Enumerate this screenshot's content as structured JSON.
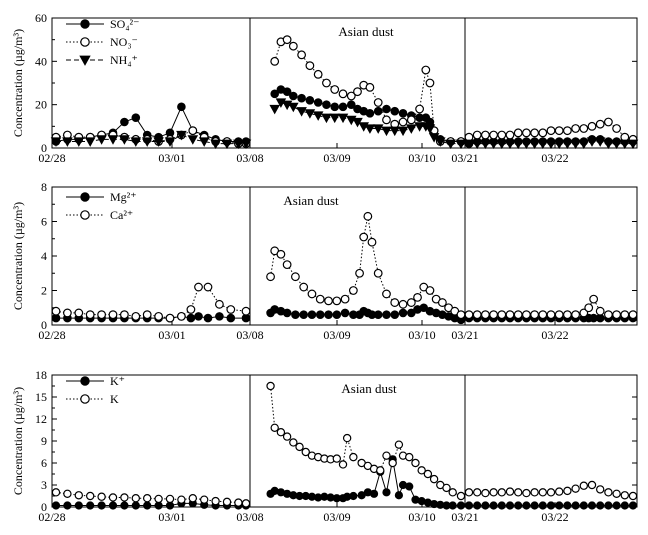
{
  "figure": {
    "ylabel": "Concentration (µg/m³)",
    "colors": {
      "axis": "#000000",
      "filled": "#000000",
      "open_fill": "#ffffff",
      "open_stroke": "#000000"
    }
  },
  "chart_data": [
    {
      "type": "line",
      "panel": "top",
      "ylabel": "Concentration (µg/m³)",
      "ylim": [
        0,
        60
      ],
      "yticks": [
        0,
        20,
        40,
        60
      ],
      "xtick_labels": [
        "02/28",
        "03/01",
        "03/08",
        "03/09",
        "03/10",
        "03/21",
        "03/22"
      ],
      "annotation": "Asian dust",
      "legend_position": "top-left",
      "segments": [
        {
          "x": [
            0,
            0.06,
            0.12,
            0.18,
            0.24,
            0.3,
            0.36,
            0.42,
            0.48,
            0.54,
            0.6,
            0.66,
            0.72,
            0.78,
            0.84,
            0.9,
            0.96,
            1.0
          ],
          "series": [
            {
              "legend": "SO₄²⁻",
              "marker": "filled-circle",
              "dash": "solid",
              "values": [
                3,
                4,
                4,
                5,
                6,
                7,
                12,
                14,
                6,
                5,
                7,
                19,
                8,
                6,
                4,
                3,
                3,
                3
              ]
            },
            {
              "legend": "NO₃⁻",
              "marker": "open-circle",
              "dash": "dotted",
              "values": [
                5,
                6,
                5,
                5,
                6,
                6,
                5,
                4,
                4,
                3,
                4,
                6,
                8,
                5,
                3,
                3,
                2,
                2
              ]
            },
            {
              "legend": "NH₄⁺",
              "marker": "filled-triangle-down",
              "dash": "dashed",
              "values": [
                3,
                3,
                3,
                3,
                4,
                4,
                4,
                3,
                3,
                3,
                3,
                6,
                4,
                3,
                2,
                2,
                2,
                2
              ]
            }
          ]
        },
        {
          "x": [
            0.1,
            0.13,
            0.16,
            0.19,
            0.23,
            0.27,
            0.31,
            0.35,
            0.39,
            0.43,
            0.47,
            0.5,
            0.53,
            0.56,
            0.6,
            0.64,
            0.68,
            0.72,
            0.76,
            0.8,
            0.83,
            0.85,
            0.87,
            0.9,
            0.95,
            1.0
          ],
          "series": [
            {
              "values": [
                25,
                27,
                26,
                24,
                23,
                22,
                21,
                20,
                19,
                19,
                20,
                18,
                17,
                16,
                17,
                18,
                17,
                16,
                15,
                14,
                14,
                12,
                8,
                4,
                3,
                3
              ]
            },
            {
              "values": [
                40,
                49,
                50,
                47,
                43,
                38,
                34,
                30,
                27,
                25,
                24,
                26,
                29,
                28,
                21,
                13,
                11,
                12,
                13,
                18,
                36,
                30,
                8,
                3,
                3,
                3
              ]
            },
            {
              "values": [
                18,
                21,
                20,
                19,
                17,
                16,
                15,
                14,
                14,
                14,
                13,
                12,
                10,
                9,
                9,
                8,
                8,
                8,
                9,
                10,
                10,
                9,
                5,
                3,
                2,
                2
              ]
            }
          ]
        },
        {
          "x": [
            0,
            0.05,
            0.1,
            0.15,
            0.2,
            0.25,
            0.3,
            0.35,
            0.4,
            0.45,
            0.5,
            0.55,
            0.6,
            0.65,
            0.7,
            0.75,
            0.8,
            0.85,
            0.9,
            0.95,
            1.0
          ],
          "series": [
            {
              "values": [
                2,
                3,
                3,
                3,
                3,
                3,
                3,
                3,
                3,
                3,
                3,
                3,
                3,
                3,
                3,
                4,
                4,
                3,
                3,
                3,
                3
              ]
            },
            {
              "values": [
                5,
                6,
                6,
                6,
                6,
                6,
                7,
                7,
                7,
                7,
                8,
                8,
                8,
                9,
                9,
                10,
                11,
                12,
                9,
                5,
                4
              ]
            },
            {
              "values": [
                2,
                2,
                2,
                2,
                2,
                2,
                2,
                2,
                2,
                2,
                2,
                2,
                2,
                2,
                2,
                3,
                3,
                2,
                2,
                2,
                2
              ]
            }
          ]
        }
      ]
    },
    {
      "type": "line",
      "panel": "middle",
      "ylabel": "Concentration (µg/m³)",
      "ylim": [
        0,
        8
      ],
      "yticks": [
        0,
        2,
        4,
        6,
        8
      ],
      "xtick_labels": [
        "02/28",
        "03/01",
        "03/08",
        "03/09",
        "03/10",
        "03/21",
        "03/22"
      ],
      "annotation": "Asian dust",
      "legend_position": "top-left",
      "segments": [
        {
          "x": [
            0,
            0.06,
            0.12,
            0.18,
            0.24,
            0.3,
            0.36,
            0.42,
            0.48,
            0.54,
            0.6,
            0.66,
            0.71,
            0.75,
            0.8,
            0.86,
            0.92,
            1.0
          ],
          "series": [
            {
              "legend": "Mg²⁺",
              "marker": "filled-circle",
              "dash": "solid",
              "values": [
                0.4,
                0.4,
                0.4,
                0.4,
                0.4,
                0.4,
                0.4,
                0.4,
                0.4,
                0.4,
                0.4,
                0.5,
                0.4,
                0.5,
                0.4,
                0.5,
                0.4,
                0.4
              ]
            },
            {
              "legend": "Ca²⁺",
              "marker": "open-circle",
              "dash": "dotted",
              "values": [
                0.8,
                0.7,
                0.7,
                0.6,
                0.6,
                0.6,
                0.6,
                0.5,
                0.6,
                0.5,
                0.4,
                0.5,
                0.9,
                2.2,
                2.2,
                1.2,
                0.9,
                0.8
              ]
            }
          ]
        },
        {
          "x": [
            0.08,
            0.1,
            0.13,
            0.16,
            0.2,
            0.24,
            0.28,
            0.32,
            0.36,
            0.4,
            0.44,
            0.48,
            0.51,
            0.53,
            0.55,
            0.57,
            0.6,
            0.64,
            0.68,
            0.72,
            0.76,
            0.79,
            0.82,
            0.85,
            0.88,
            0.91,
            0.94,
            0.97,
            1.0
          ],
          "series": [
            {
              "values": [
                0.7,
                0.9,
                0.8,
                0.7,
                0.6,
                0.6,
                0.6,
                0.6,
                0.6,
                0.6,
                0.7,
                0.6,
                0.6,
                0.8,
                0.7,
                0.6,
                0.6,
                0.6,
                0.6,
                0.7,
                0.7,
                0.9,
                1.0,
                0.8,
                0.7,
                0.6,
                0.5,
                0.4,
                0.3
              ]
            },
            {
              "values": [
                2.8,
                4.3,
                4.1,
                3.5,
                2.8,
                2.2,
                1.8,
                1.5,
                1.4,
                1.4,
                1.5,
                2.0,
                3.0,
                5.1,
                6.3,
                4.8,
                3.0,
                1.8,
                1.3,
                1.2,
                1.3,
                1.6,
                2.2,
                2.0,
                1.5,
                1.3,
                1.0,
                0.8,
                0.6
              ]
            }
          ]
        },
        {
          "x": [
            0,
            0.05,
            0.1,
            0.15,
            0.2,
            0.25,
            0.3,
            0.35,
            0.4,
            0.45,
            0.5,
            0.55,
            0.6,
            0.65,
            0.7,
            0.73,
            0.76,
            0.8,
            0.85,
            0.9,
            0.95,
            1.0
          ],
          "series": [
            {
              "values": [
                0.4,
                0.4,
                0.4,
                0.4,
                0.4,
                0.4,
                0.4,
                0.4,
                0.4,
                0.4,
                0.4,
                0.4,
                0.4,
                0.4,
                0.4,
                0.4,
                0.4,
                0.4,
                0.4,
                0.4,
                0.4,
                0.4
              ]
            },
            {
              "values": [
                0.6,
                0.6,
                0.6,
                0.6,
                0.6,
                0.6,
                0.6,
                0.6,
                0.6,
                0.6,
                0.6,
                0.6,
                0.6,
                0.6,
                0.7,
                1.0,
                1.5,
                0.8,
                0.6,
                0.6,
                0.6,
                0.6
              ]
            }
          ]
        }
      ]
    },
    {
      "type": "line",
      "panel": "bottom",
      "ylabel": "Concentration (µg/m³)",
      "ylim": [
        0,
        18
      ],
      "yticks": [
        0,
        3,
        6,
        9,
        12,
        15,
        18
      ],
      "xtick_labels": [
        "02/28",
        "03/01",
        "03/08",
        "03/09",
        "03/10",
        "03/21",
        "03/22"
      ],
      "annotation": "Asian dust",
      "legend_position": "top-left",
      "segments": [
        {
          "x": [
            0,
            0.06,
            0.12,
            0.18,
            0.24,
            0.3,
            0.36,
            0.42,
            0.48,
            0.54,
            0.6,
            0.66,
            0.72,
            0.78,
            0.84,
            0.9,
            0.96,
            1.0
          ],
          "series": [
            {
              "legend": "K⁺",
              "marker": "filled-circle",
              "dash": "solid",
              "values": [
                0.2,
                0.2,
                0.2,
                0.2,
                0.2,
                0.2,
                0.2,
                0.2,
                0.2,
                0.2,
                0.2,
                0.5,
                0.5,
                0.3,
                0.2,
                0.2,
                0.2,
                0.2
              ]
            },
            {
              "legend": "K",
              "marker": "open-circle",
              "dash": "dotted",
              "values": [
                2.0,
                1.8,
                1.6,
                1.5,
                1.4,
                1.3,
                1.3,
                1.2,
                1.2,
                1.1,
                1.1,
                1.0,
                1.2,
                1.0,
                0.8,
                0.7,
                0.6,
                0.5
              ]
            }
          ]
        },
        {
          "x": [
            0.08,
            0.1,
            0.13,
            0.16,
            0.19,
            0.22,
            0.25,
            0.28,
            0.31,
            0.34,
            0.37,
            0.4,
            0.43,
            0.45,
            0.48,
            0.52,
            0.55,
            0.58,
            0.61,
            0.64,
            0.67,
            0.7,
            0.72,
            0.75,
            0.78,
            0.81,
            0.84,
            0.87,
            0.9,
            0.93,
            0.96,
            1.0
          ],
          "series": [
            {
              "values": [
                1.8,
                2.2,
                2.0,
                1.8,
                1.6,
                1.5,
                1.5,
                1.4,
                1.3,
                1.4,
                1.3,
                1.2,
                1.2,
                1.4,
                1.5,
                1.6,
                2.0,
                1.8,
                4.8,
                2.0,
                6.5,
                1.6,
                3.0,
                2.8,
                1.0,
                0.8,
                0.6,
                0.4,
                0.3,
                0.2,
                0.2,
                0.2
              ]
            },
            {
              "values": [
                16.5,
                10.8,
                10.2,
                9.6,
                8.8,
                8.2,
                7.5,
                7.0,
                6.8,
                6.6,
                6.5,
                6.6,
                5.8,
                9.4,
                6.8,
                6.0,
                5.6,
                5.2,
                5.0,
                7.0,
                6.0,
                8.5,
                7.0,
                6.8,
                6.0,
                5.0,
                4.5,
                3.8,
                3.0,
                2.6,
                2.0,
                1.5
              ]
            }
          ]
        },
        {
          "x": [
            0,
            0.05,
            0.1,
            0.15,
            0.2,
            0.25,
            0.3,
            0.35,
            0.4,
            0.45,
            0.5,
            0.55,
            0.6,
            0.65,
            0.7,
            0.75,
            0.8,
            0.85,
            0.9,
            0.95,
            1.0
          ],
          "series": [
            {
              "values": [
                0.2,
                0.2,
                0.2,
                0.2,
                0.2,
                0.2,
                0.2,
                0.2,
                0.2,
                0.2,
                0.2,
                0.2,
                0.2,
                0.2,
                0.2,
                0.2,
                0.2,
                0.2,
                0.2,
                0.2,
                0.2
              ]
            },
            {
              "values": [
                2.0,
                2.0,
                1.9,
                2.0,
                2.0,
                2.1,
                2.0,
                1.9,
                2.0,
                2.0,
                2.0,
                2.1,
                2.2,
                2.5,
                2.9,
                3.0,
                2.4,
                2.0,
                1.8,
                1.6,
                1.5
              ]
            }
          ]
        }
      ]
    }
  ]
}
